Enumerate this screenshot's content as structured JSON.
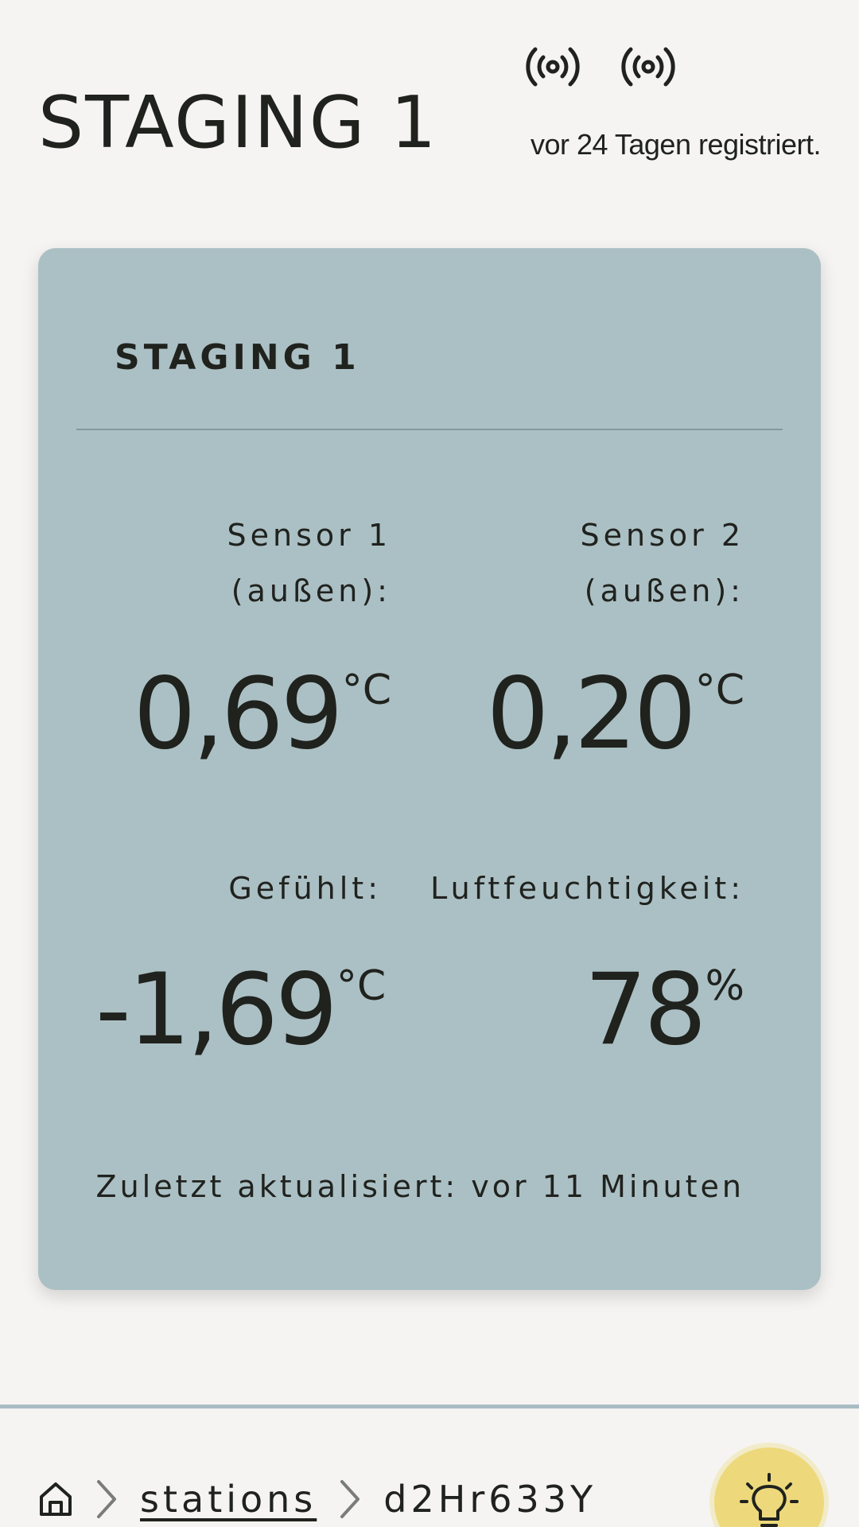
{
  "header": {
    "title": "STAGING 1",
    "registered": "vor 24 Tagen registriert.",
    "icons": [
      "radio-signal-icon",
      "radio-signal-icon"
    ]
  },
  "card": {
    "title": "STAGING 1",
    "sensor1": {
      "label_line1": "Sensor 1",
      "label_line2": "(außen):",
      "value": "0,69",
      "unit": "°C"
    },
    "sensor2": {
      "label_line1": "Sensor 2",
      "label_line2": "(außen):",
      "value": "0,20",
      "unit": "°C"
    },
    "feels_like": {
      "label": "Gefühlt:",
      "value": "-1,69",
      "unit": "°C"
    },
    "humidity": {
      "label": "Luftfeuchtigkeit:",
      "value": "78",
      "unit": "%"
    },
    "updated": "Zuletzt aktualisiert: vor 11 Minuten"
  },
  "breadcrumb": {
    "home_icon": "home-icon",
    "link": "stations",
    "current": "d2Hr633Y"
  },
  "colors": {
    "background": "#f5f4f2",
    "card": "#abc0c4",
    "text": "#20221e",
    "accent_button": "#edd97c"
  }
}
